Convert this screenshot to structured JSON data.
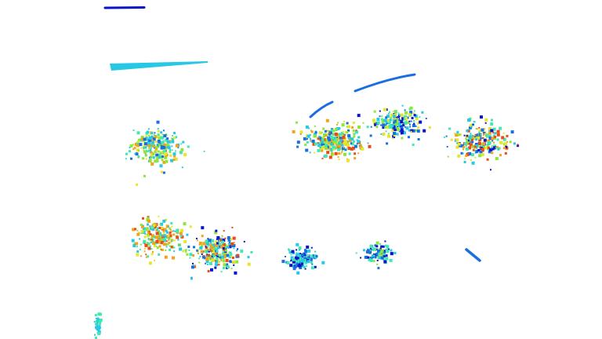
{
  "scene": {
    "background": "#ffffff",
    "description_visible_text": ""
  },
  "colormap": [
    "#0a14c8",
    "#1a6fe0",
    "#27c8e6",
    "#3fe8b4",
    "#8ee63a",
    "#e8e62a",
    "#f2a31e",
    "#ec4a1a"
  ]
}
